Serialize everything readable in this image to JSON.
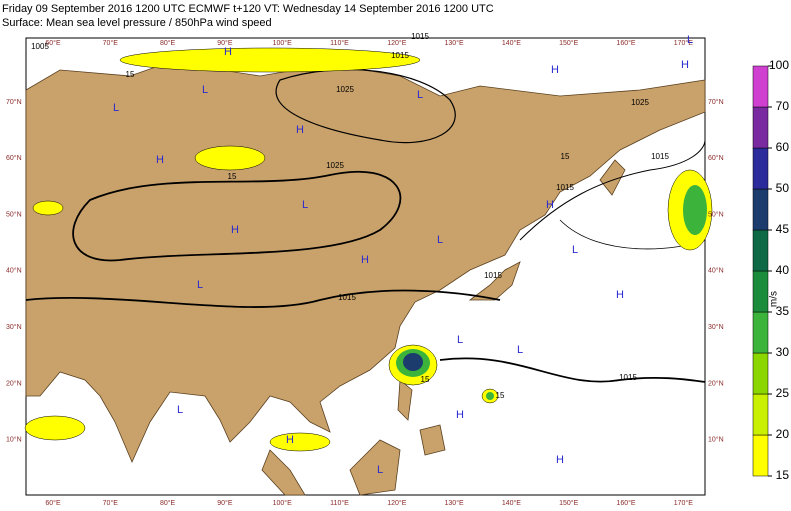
{
  "header": {
    "line1": "Friday 09 September 2016 1200 UTC  ECMWF  t+120  VT: Wednesday 14 September 2016 1200 UTC",
    "line2": "Surface: Mean sea level pressure / 850hPa wind speed"
  },
  "map": {
    "lon_labels": [
      "60°E",
      "70°E",
      "80°E",
      "90°E",
      "100°E",
      "110°E",
      "120°E",
      "130°E",
      "140°E",
      "150°E",
      "160°E",
      "170°E"
    ],
    "lat_labels": [
      "70°N",
      "60°N",
      "50°N",
      "40°N",
      "30°N",
      "20°N",
      "10°N"
    ],
    "isobar_labels": [
      "1005",
      "1015",
      "1025",
      "1025",
      "1025",
      "1015",
      "1015",
      "1015",
      "1015",
      "1015",
      "1015",
      "15",
      "15",
      "15",
      "15",
      "15"
    ],
    "pressure_centers": [
      "H",
      "L",
      "H",
      "L",
      "H",
      "L",
      "H",
      "L",
      "H",
      "L",
      "H",
      "L",
      "H",
      "L",
      "H",
      "L",
      "H",
      "L",
      "H",
      "L",
      "H",
      "L",
      "H",
      "L"
    ]
  },
  "colorbar": {
    "levels": [
      15,
      20,
      25,
      30,
      35,
      40,
      45,
      50,
      60,
      70,
      100
    ],
    "colors": [
      "#ffff00",
      "#c8f000",
      "#8cd600",
      "#3cb43c",
      "#1a8c3c",
      "#0e6a46",
      "#1c3c6e",
      "#2b2b9c",
      "#7a2aa0",
      "#d040d0"
    ],
    "unit": "m/s"
  }
}
